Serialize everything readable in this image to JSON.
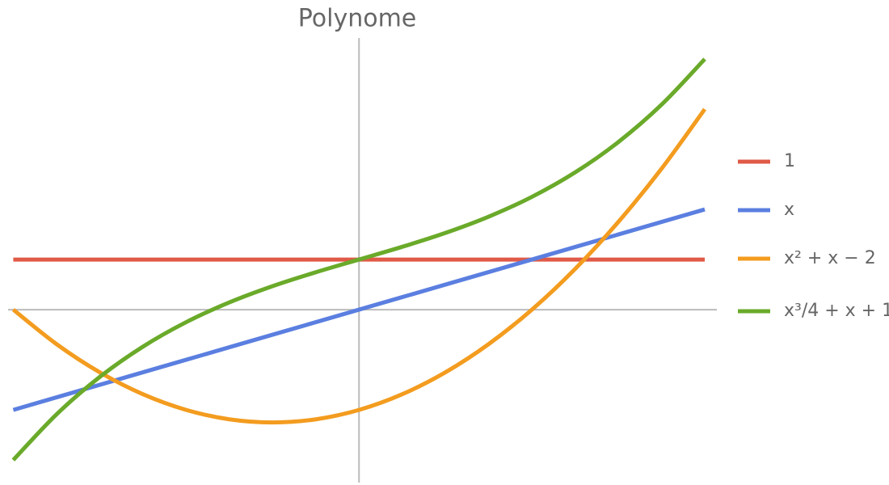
{
  "chart_data": {
    "type": "line",
    "title": "Polynome",
    "x": [
      -2,
      -1.75,
      -1.5,
      -1.25,
      -1,
      -0.75,
      -0.5,
      -0.25,
      0,
      0.25,
      0.5,
      0.75,
      1,
      1.25,
      1.5,
      1.75,
      2
    ],
    "xlim": [
      -2.03,
      2.07
    ],
    "ylim": [
      -3.45,
      5.42
    ],
    "axes_origin": true,
    "series": [
      {
        "name": "1",
        "color": "#e05a47",
        "values": [
          1,
          1,
          1,
          1,
          1,
          1,
          1,
          1,
          1,
          1,
          1,
          1,
          1,
          1,
          1,
          1,
          1
        ]
      },
      {
        "name": "x",
        "color": "#5b7fe0",
        "values": [
          -2,
          -1.75,
          -1.5,
          -1.25,
          -1,
          -0.75,
          -0.5,
          -0.25,
          0,
          0.25,
          0.5,
          0.75,
          1,
          1.25,
          1.5,
          1.75,
          2
        ]
      },
      {
        "name": "x² + x − 2",
        "color": "#f39c1f",
        "values": [
          0,
          -0.6875,
          -1.25,
          -1.6875,
          -2,
          -2.1875,
          -2.25,
          -2.1875,
          -2,
          -1.6875,
          -1.25,
          -0.6875,
          0,
          0.8125,
          1.75,
          2.8125,
          4
        ]
      },
      {
        "name": "x³/4 + x + 1",
        "color": "#6aaa2a",
        "values": [
          -3,
          -2.08984375,
          -1.34375,
          -0.73828125,
          -0.25,
          0.14453125,
          0.46875,
          0.74609375,
          1,
          1.25390625,
          1.53125,
          1.85546875,
          2.25,
          2.73828125,
          3.34375,
          4.08984375,
          5
        ]
      }
    ]
  }
}
